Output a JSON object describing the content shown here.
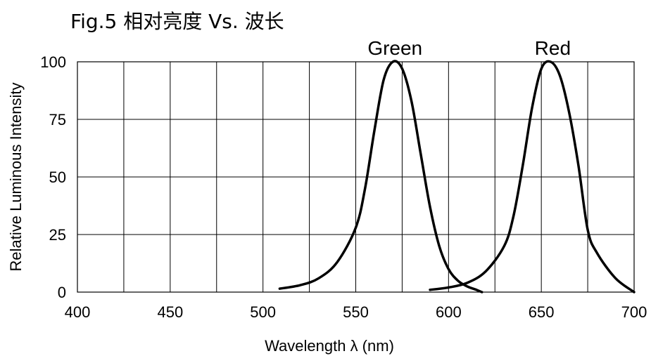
{
  "chart_data": {
    "type": "line",
    "title": "Fig.5  相对亮度 Vs. 波长",
    "xlabel": "Wavelength  λ (nm)",
    "ylabel": "Relative Luminous Intensity",
    "xlim": [
      400,
      700
    ],
    "ylim": [
      0,
      100
    ],
    "x_ticks": [
      400,
      450,
      500,
      550,
      600,
      650,
      700
    ],
    "y_ticks": [
      0,
      25,
      50,
      75,
      100
    ],
    "grid": true,
    "series": [
      {
        "name": "Green",
        "x": [
          509,
          520,
          530,
          540,
          550,
          555,
          560,
          565,
          570,
          575,
          580,
          585,
          590,
          595,
          600,
          605,
          610,
          615,
          618
        ],
        "y": [
          1.5,
          3,
          6,
          13,
          28,
          45,
          70,
          92,
          100,
          97,
          83,
          60,
          37,
          20,
          10,
          5,
          2.5,
          1,
          0
        ]
      },
      {
        "name": "Red",
        "x": [
          590,
          600,
          610,
          620,
          630,
          635,
          640,
          645,
          650,
          655,
          660,
          665,
          670,
          675,
          680,
          690,
          700
        ],
        "y": [
          1,
          2,
          4,
          9,
          20,
          33,
          55,
          80,
          97,
          100,
          94,
          78,
          55,
          27,
          17,
          6,
          0
        ]
      }
    ]
  }
}
